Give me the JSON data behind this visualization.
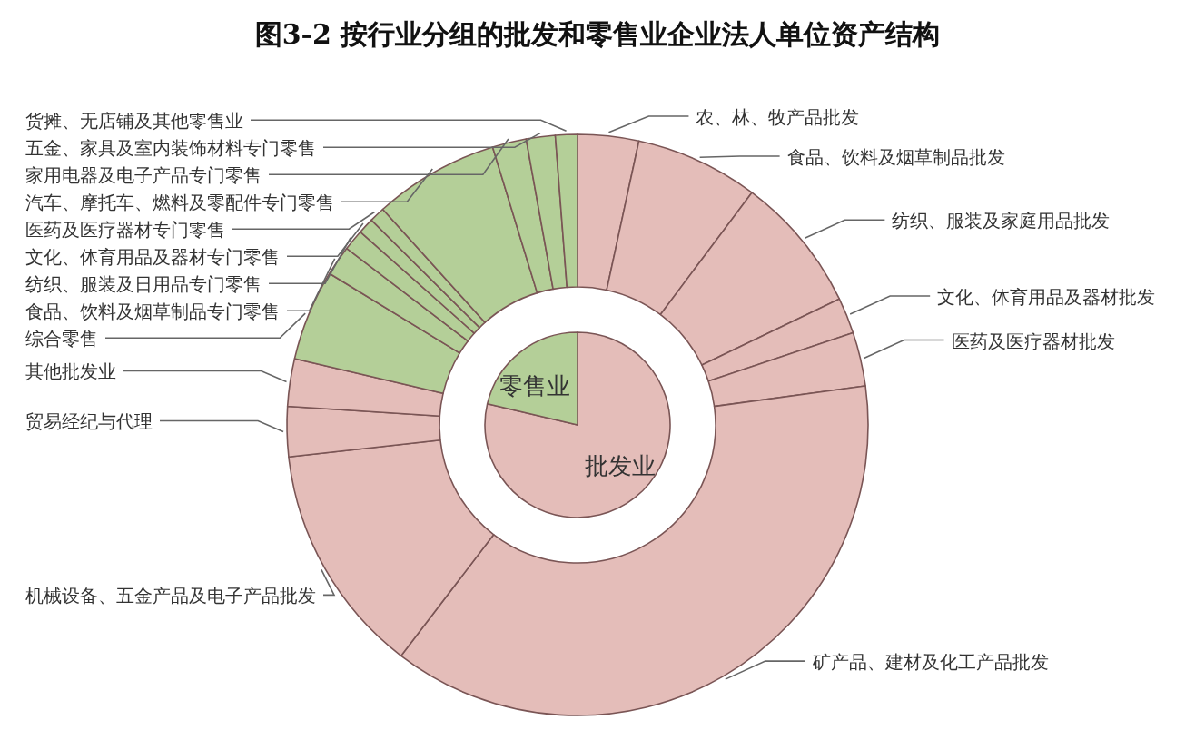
{
  "chart_data": [
    {
      "type": "donut",
      "title": "图3-2 按行业分组的批发和零售业企业法人单位资产结构",
      "categories": [
        "农、林、牧产品批发",
        "食品、饮料及烟草制品批发",
        "纺织、服装及家庭用品批发",
        "文化、体育用品及器材批发",
        "医药及医疗器材批发",
        "矿产品、建材及化工产品批发",
        "机械设备、五金产品及电子产品批发",
        "贸易经纪与代理",
        "其他批发业",
        "综合零售",
        "食品、饮料及烟草制品专门零售",
        "纺织、服装及日用品专门零售",
        "文化、体育用品及器材专门零售",
        "医药及医疗器材专门零售",
        "汽车、摩托车、燃料及零配件专门零售",
        "家用电器及电子产品专门零售",
        "五金、家具及室内装饰材料专门零售",
        "货摊、无店铺及其他零售业"
      ],
      "values": [
        3.39,
        6.86,
        7.61,
        2.0,
        3.0,
        37.53,
        12.86,
        2.78,
        2.64,
        5.06,
        1.67,
        1.17,
        0.89,
        0.86,
        6.97,
        1.89,
        1.61,
        1.22
      ],
      "colors": [
        "#e4bdb9",
        "#e4bdb9",
        "#e4bdb9",
        "#e4bdb9",
        "#e4bdb9",
        "#e4bdb9",
        "#e4bdb9",
        "#e4bdb9",
        "#e4bdb9",
        "#b4cf98",
        "#b4cf98",
        "#b4cf98",
        "#b4cf98",
        "#b4cf98",
        "#b4cf98",
        "#b4cf98",
        "#b4cf98",
        "#b4cf98"
      ]
    },
    {
      "type": "pie",
      "categories": [
        "批发业",
        "零售业"
      ],
      "values": [
        78.67,
        21.33
      ],
      "colors": [
        "#e4bdb9",
        "#b4cf98"
      ]
    }
  ]
}
